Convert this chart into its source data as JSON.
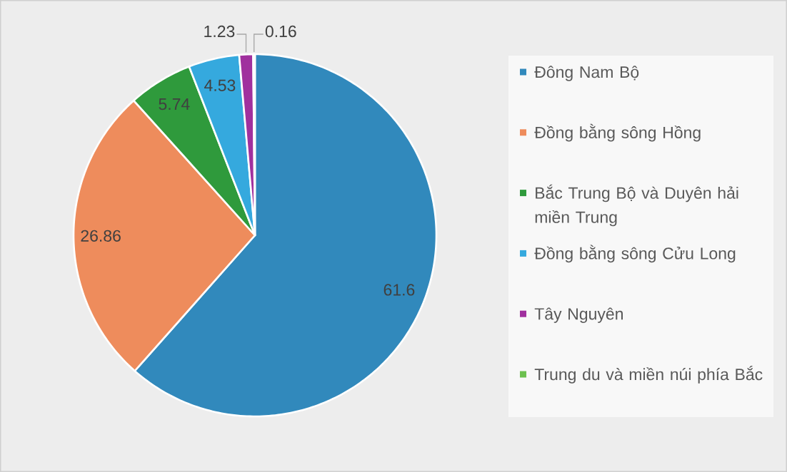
{
  "chart_data": {
    "type": "pie",
    "categories": [
      "Đông Nam Bộ",
      "Đồng bằng sông Hồng",
      "Bắc Trung Bộ và Duyên hải miền Trung",
      "Đồng bằng sông Cửu Long",
      "Tây Nguyên",
      "Trung du và miền núi phía Bắc"
    ],
    "values": [
      61.6,
      26.86,
      5.74,
      4.53,
      1.23,
      0.16
    ],
    "colors": [
      "#3189bc",
      "#ee8c5c",
      "#2f9a3c",
      "#35a9de",
      "#a0309e",
      "#6cc04f"
    ],
    "data_labels": true,
    "legend": "right"
  }
}
